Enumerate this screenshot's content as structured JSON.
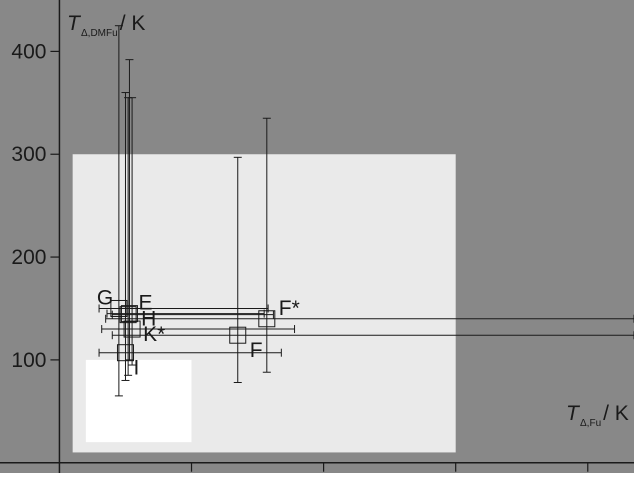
{
  "chart_data": {
    "type": "scatter",
    "x_axis": {
      "label": {
        "symbol": "T",
        "subscript": "Δ,Fu",
        "unit": "/ K"
      },
      "ticks": [
        100,
        200,
        300,
        400
      ],
      "range": [
        -45,
        435
      ]
    },
    "y_axis": {
      "label": {
        "symbol": "T",
        "subscript": "Δ,DMFu",
        "unit": "/ K"
      },
      "ticks": [
        100,
        200,
        300,
        400
      ],
      "range": [
        -10,
        450
      ]
    },
    "regions": [
      {
        "x": [
          10,
          300
        ],
        "y": [
          10,
          300
        ],
        "color": "#eaeaea"
      },
      {
        "x": [
          20,
          100
        ],
        "y": [
          20,
          100
        ],
        "color": "#ffffff"
      }
    ],
    "points": [
      {
        "label": "G",
        "x": 45,
        "y": 150,
        "xerr": [
          30,
          158
        ],
        "yerr": [
          65,
          425
        ]
      },
      {
        "label": "E",
        "x": 53,
        "y": 145,
        "xerr": [
          36,
          155
        ],
        "yerr": [
          100,
          392
        ]
      },
      {
        "label": "H",
        "x": 52,
        "y": 144,
        "xerr": [
          40,
          162
        ],
        "yerr": [
          85,
          355
        ]
      },
      {
        "label": "F*",
        "x": 157,
        "y": 140,
        "xerr": [
          35,
          435
        ],
        "yerr": [
          88,
          335
        ]
      },
      {
        "label": "K*",
        "x": 55,
        "y": 130,
        "xerr": [
          32,
          178
        ],
        "yerr": [
          95,
          355
        ]
      },
      {
        "label": "F",
        "x": 135,
        "y": 124,
        "xerr": [
          40,
          435
        ],
        "yerr": [
          78,
          297
        ]
      },
      {
        "label": "I",
        "x": 50,
        "y": 107,
        "xerr": [
          30,
          168
        ],
        "yerr": [
          80,
          360
        ]
      }
    ],
    "colors": {
      "background": "#888888",
      "region_outer": "#eaeaea",
      "region_inner": "#ffffff",
      "marks": "#1a1a1a"
    },
    "grid": false,
    "legend": "none"
  }
}
